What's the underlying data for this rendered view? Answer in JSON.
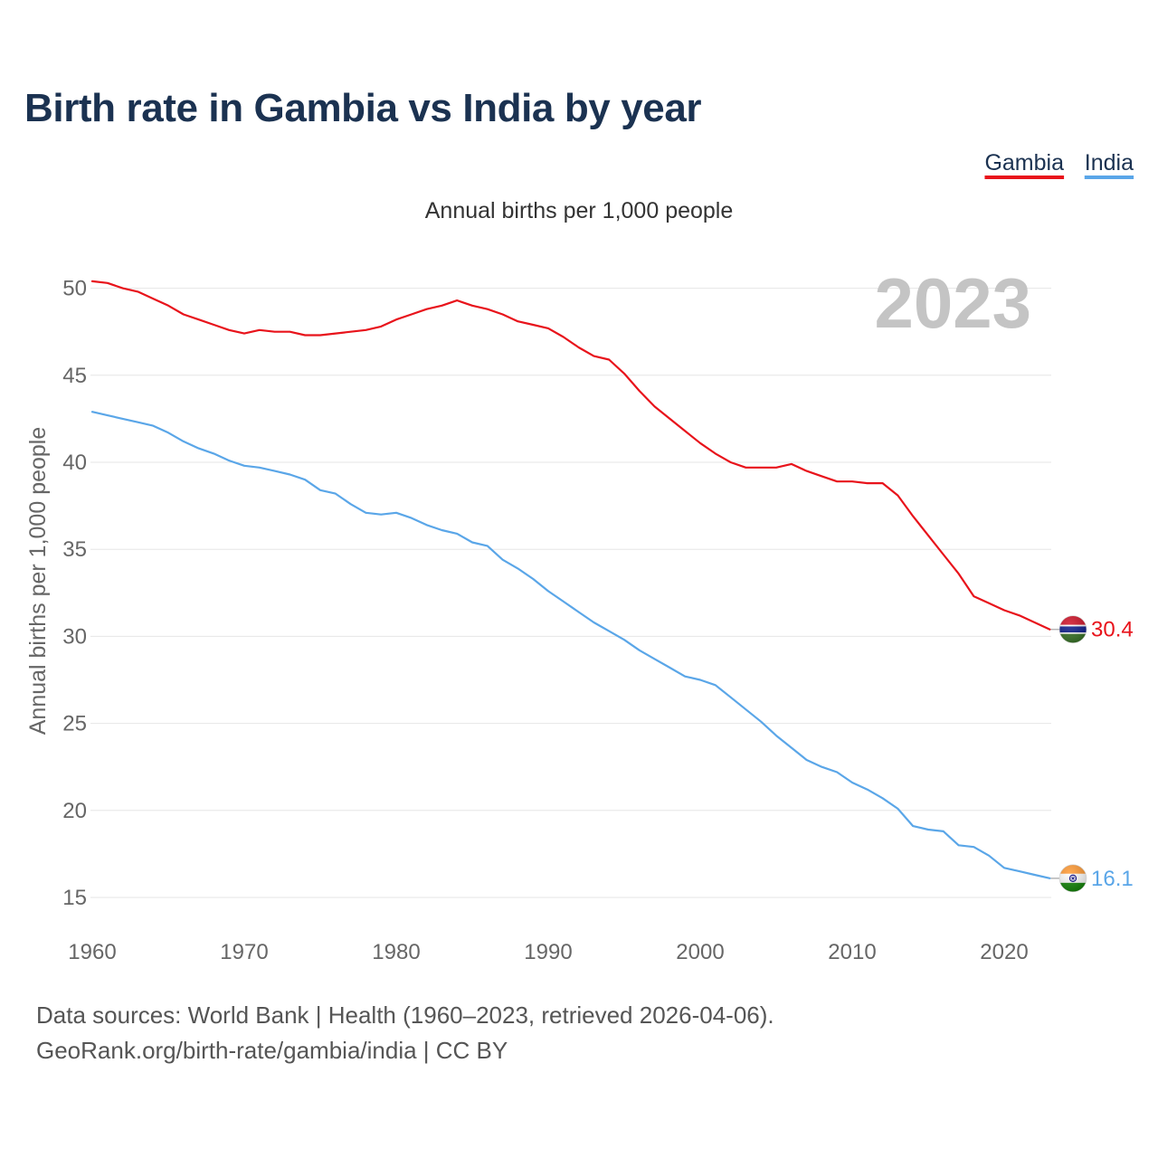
{
  "chart_data": {
    "type": "line",
    "title": "Birth rate in Gambia vs India by year",
    "subtitle": "Annual births per 1,000 people",
    "ylabel": "Annual births per 1,000 people",
    "year_annotation": "2023",
    "xlim": [
      1960,
      2023
    ],
    "ylim": [
      15,
      50
    ],
    "x_ticks": [
      1960,
      1970,
      1980,
      1990,
      2000,
      2010,
      2020
    ],
    "y_ticks": [
      15,
      20,
      25,
      30,
      35,
      40,
      45,
      50
    ],
    "grid": true,
    "legend_position": "top-right",
    "x": [
      1960,
      1961,
      1962,
      1963,
      1964,
      1965,
      1966,
      1967,
      1968,
      1969,
      1970,
      1971,
      1972,
      1973,
      1974,
      1975,
      1976,
      1977,
      1978,
      1979,
      1980,
      1981,
      1982,
      1983,
      1984,
      1985,
      1986,
      1987,
      1988,
      1989,
      1990,
      1991,
      1992,
      1993,
      1994,
      1995,
      1996,
      1997,
      1998,
      1999,
      2000,
      2001,
      2002,
      2003,
      2004,
      2005,
      2006,
      2007,
      2008,
      2009,
      2010,
      2011,
      2012,
      2013,
      2014,
      2015,
      2016,
      2017,
      2018,
      2019,
      2020,
      2021,
      2022,
      2023
    ],
    "series": [
      {
        "name": "Gambia",
        "color": "#e8131b",
        "flag_icon": "gambia-flag-icon",
        "end_label": "30.4",
        "values": [
          50.4,
          50.3,
          50.0,
          49.8,
          49.4,
          49.0,
          48.5,
          48.2,
          47.9,
          47.6,
          47.4,
          47.6,
          47.5,
          47.5,
          47.3,
          47.3,
          47.4,
          47.5,
          47.6,
          47.8,
          48.2,
          48.5,
          48.8,
          49.0,
          49.3,
          49.0,
          48.8,
          48.5,
          48.1,
          47.9,
          47.7,
          47.2,
          46.6,
          46.1,
          45.9,
          45.1,
          44.1,
          43.2,
          42.5,
          41.8,
          41.1,
          40.5,
          40.0,
          39.7,
          39.7,
          39.7,
          39.9,
          39.5,
          39.2,
          38.9,
          38.9,
          38.8,
          38.8,
          38.1,
          36.9,
          35.8,
          34.7,
          33.6,
          32.3,
          31.9,
          31.5,
          31.2,
          30.8,
          30.4
        ]
      },
      {
        "name": "India",
        "color": "#5aa6e8",
        "flag_icon": "india-flag-icon",
        "end_label": "16.1",
        "values": [
          42.9,
          42.7,
          42.5,
          42.3,
          42.1,
          41.7,
          41.2,
          40.8,
          40.5,
          40.1,
          39.8,
          39.7,
          39.5,
          39.3,
          39.0,
          38.4,
          38.2,
          37.6,
          37.1,
          37.0,
          37.1,
          36.8,
          36.4,
          36.1,
          35.9,
          35.4,
          35.2,
          34.4,
          33.9,
          33.3,
          32.6,
          32.0,
          31.4,
          30.8,
          30.3,
          29.8,
          29.2,
          28.7,
          28.2,
          27.7,
          27.5,
          27.2,
          26.5,
          25.8,
          25.1,
          24.3,
          23.6,
          22.9,
          22.5,
          22.2,
          21.6,
          21.2,
          20.7,
          20.1,
          19.1,
          18.9,
          18.8,
          18.0,
          17.9,
          17.4,
          16.7,
          16.5,
          16.3,
          16.1
        ]
      }
    ]
  },
  "footer": {
    "sources": "Data sources: World Bank | Health (1960–2023, retrieved 2026-04-06).",
    "credit": "GeoRank.org/birth-rate/gambia/india | CC BY"
  }
}
